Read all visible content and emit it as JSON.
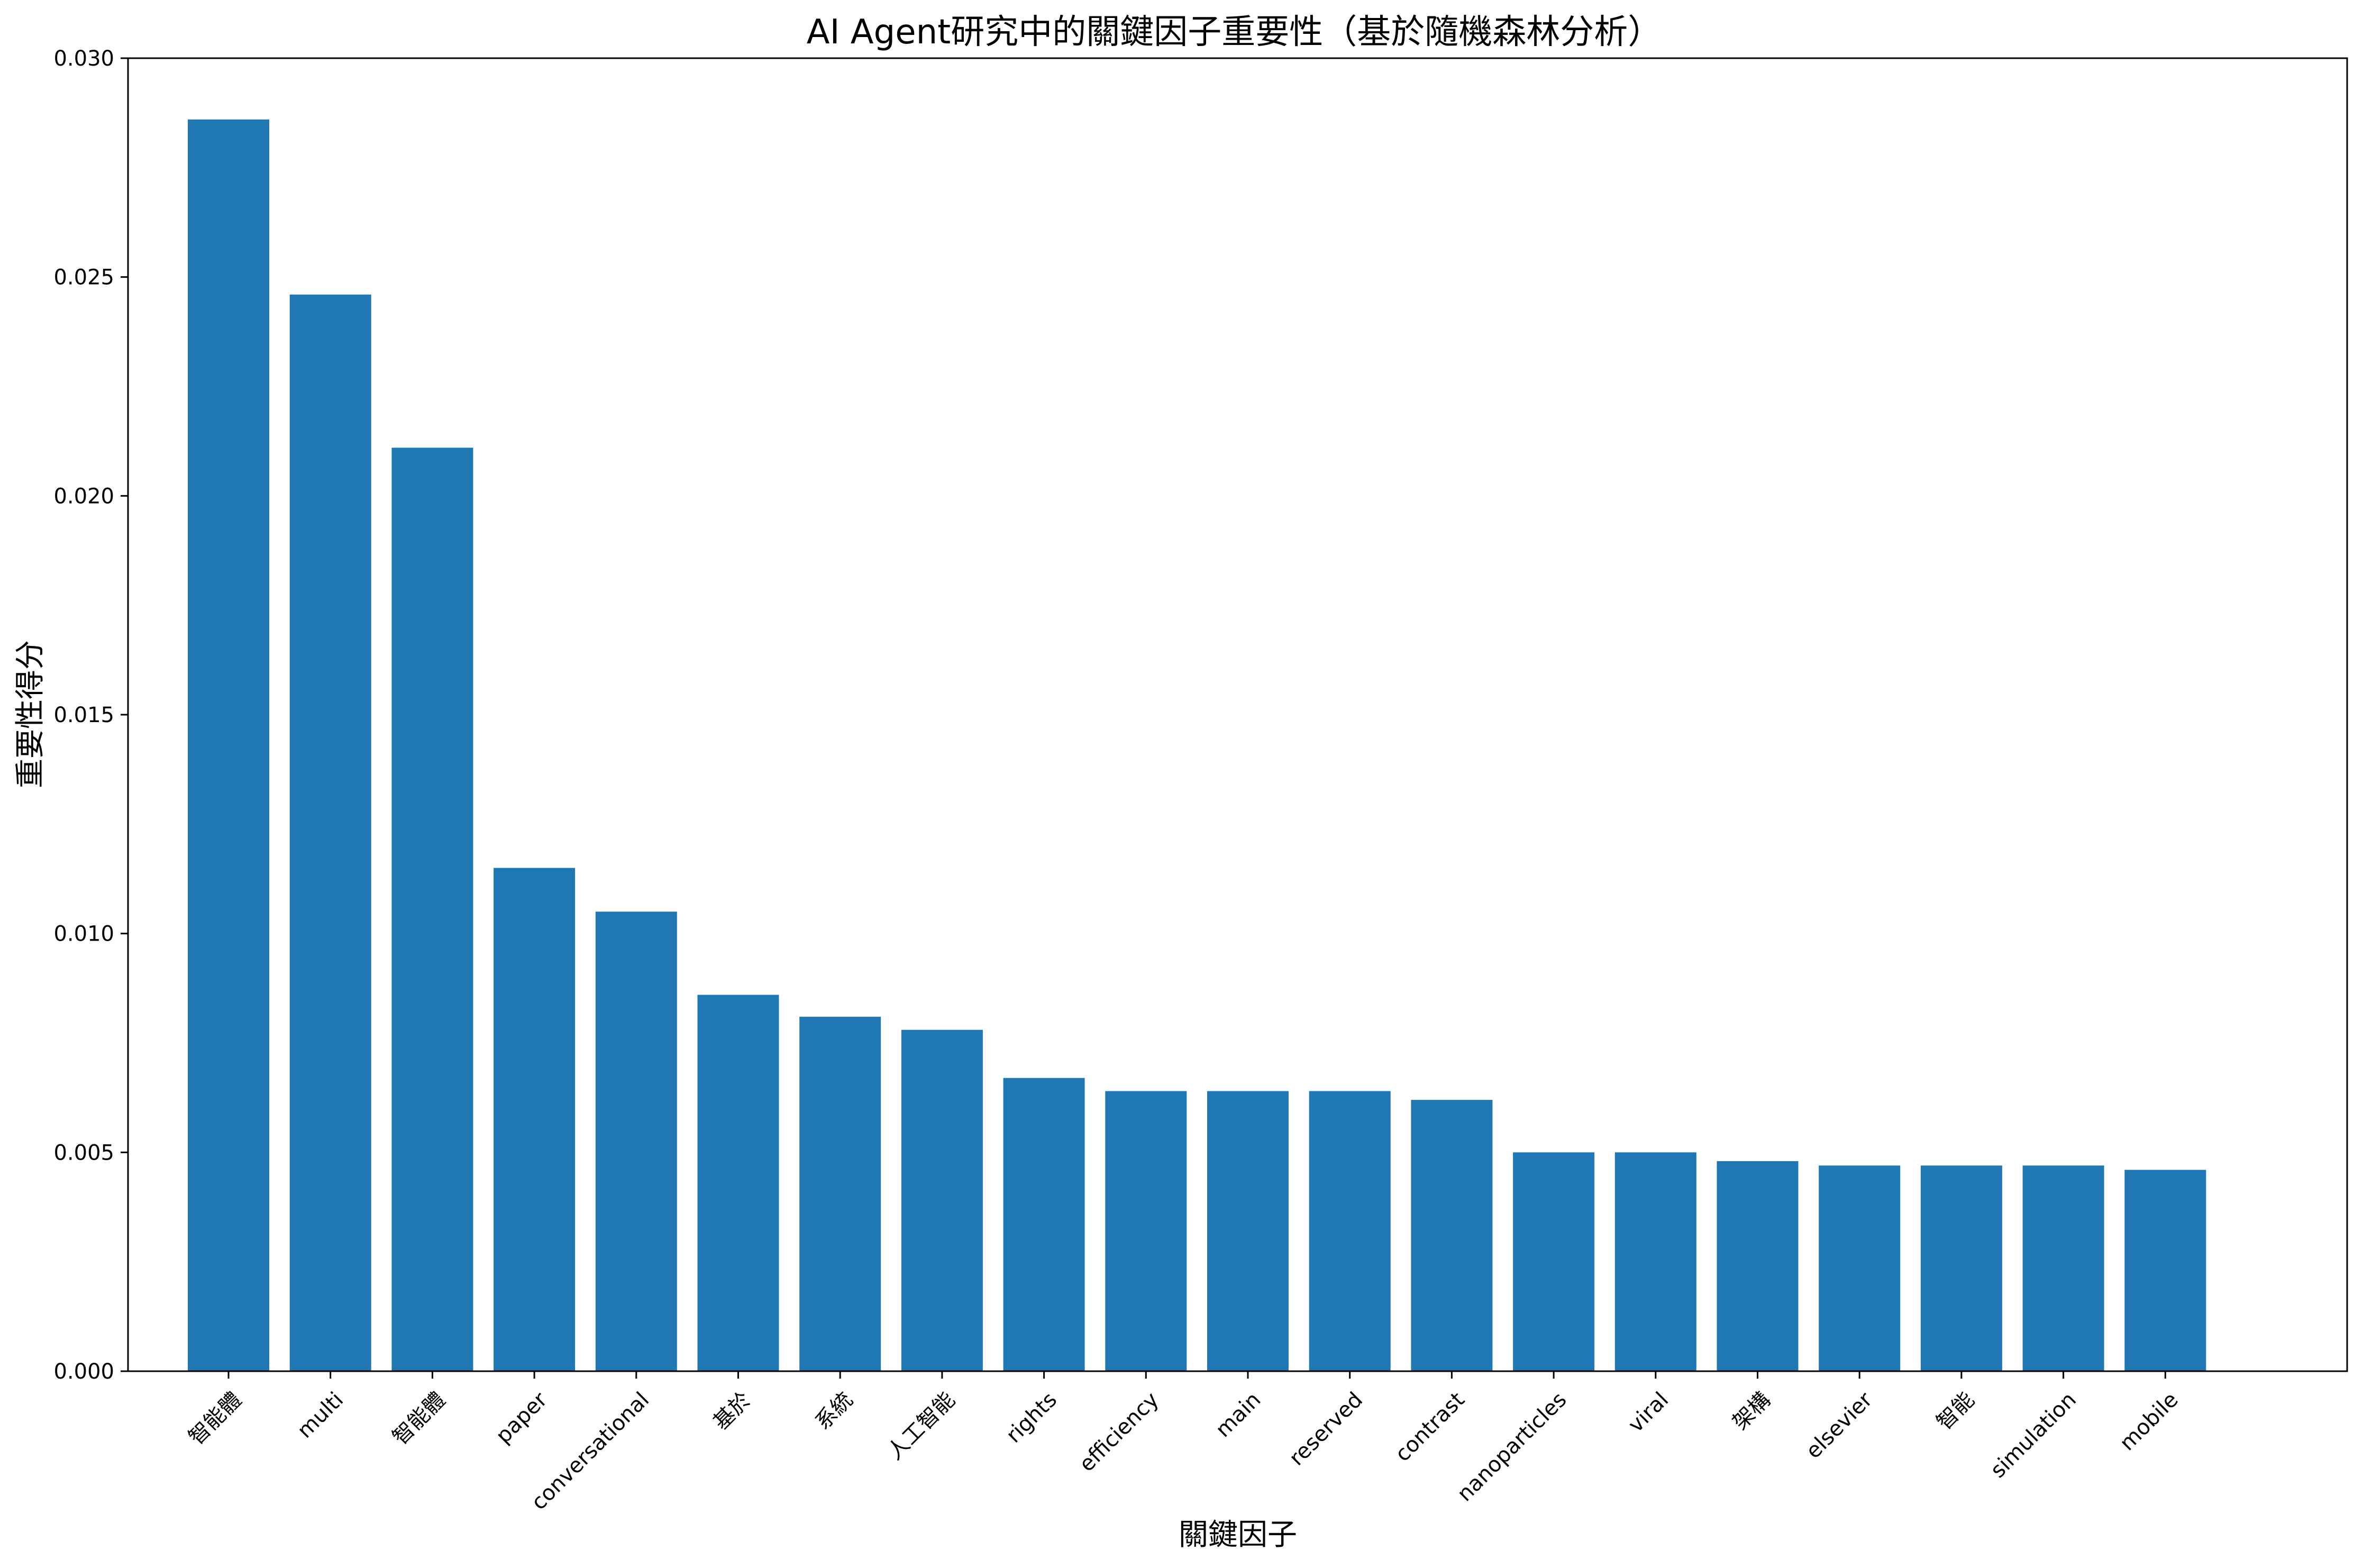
{
  "chart_data": {
    "type": "bar",
    "title": "AI Agent研究中的關鍵因子重要性（基於隨機森林分析）",
    "xlabel": "關鍵因子",
    "ylabel": "重要性得分",
    "categories": [
      "智能體",
      "multi",
      "智能體",
      "paper",
      "conversational",
      "基於",
      "系統",
      "人工智能",
      "rights",
      "efficiency",
      "main",
      "reserved",
      "contrast",
      "nanoparticles",
      "viral",
      "架構",
      "elsevier",
      "智能",
      "simulation",
      "mobile"
    ],
    "values": [
      0.0286,
      0.0246,
      0.0211,
      0.0115,
      0.0105,
      0.0086,
      0.0081,
      0.0078,
      0.0067,
      0.0064,
      0.0064,
      0.0064,
      0.0062,
      0.005,
      0.005,
      0.0048,
      0.0047,
      0.0047,
      0.0047,
      0.0046
    ],
    "ylim": [
      0,
      0.03
    ],
    "yticks": [
      "0.000",
      "0.005",
      "0.010",
      "0.015",
      "0.020",
      "0.025",
      "0.030"
    ],
    "bar_color": "#1f77b4",
    "grid": false,
    "legend": "none"
  }
}
